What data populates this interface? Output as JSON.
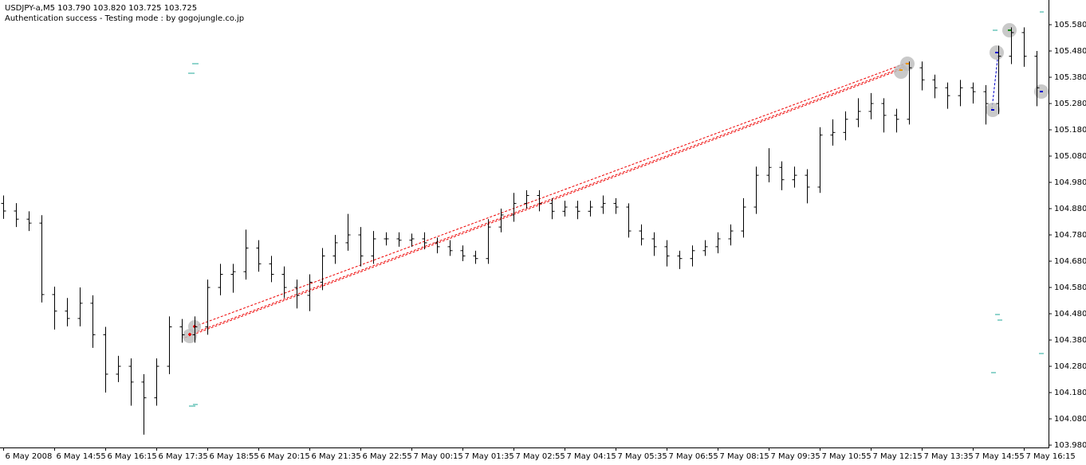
{
  "chart_data": {
    "type": "ohlc",
    "title": "USDJPY-a,M5  103.790 103.820 103.725 103.725",
    "subtitle": "Authentication success - Testing mode : by gogojungle.co.jp",
    "color": "#000000",
    "categories": [
      "6 May 2008",
      null,
      null,
      null,
      "6 May 14:55",
      null,
      null,
      null,
      "6 May 16:15",
      null,
      null,
      null,
      "6 May 17:35",
      null,
      null,
      null,
      "6 May 18:55",
      null,
      null,
      null,
      "6 May 20:15",
      null,
      null,
      null,
      "6 May 21:35",
      null,
      null,
      null,
      "6 May 22:55",
      null,
      null,
      null,
      "7 May 00:15",
      null,
      null,
      null,
      "7 May 01:35",
      null,
      null,
      null,
      "7 May 02:55",
      null,
      null,
      null,
      "7 May 04:15",
      null,
      null,
      null,
      "7 May 05:35",
      null,
      null,
      null,
      "7 May 06:55",
      null,
      null,
      null,
      "7 May 08:15",
      null,
      null,
      null,
      "7 May 09:35",
      null,
      null,
      null,
      "7 May 10:55",
      null,
      null,
      null,
      "7 May 12:15",
      null,
      null,
      null,
      "7 May 13:35",
      null,
      null,
      null,
      "7 May 14:55",
      null,
      null,
      null,
      "7 May 16:15",
      null
    ],
    "open": [
      104.9,
      104.871,
      104.84,
      104.825,
      104.553,
      104.49,
      104.462,
      104.52,
      104.4,
      104.25,
      104.28,
      104.22,
      104.16,
      104.28,
      104.43,
      104.4,
      104.43,
      104.58,
      104.63,
      104.64,
      104.73,
      104.67,
      104.63,
      104.58,
      104.55,
      104.6,
      104.7,
      104.75,
      104.78,
      104.7,
      104.765,
      104.765,
      104.76,
      104.765,
      104.75,
      104.735,
      104.72,
      104.7,
      104.69,
      104.81,
      104.856,
      104.9,
      104.93,
      104.9,
      104.87,
      104.886,
      104.87,
      104.886,
      104.9,
      104.886,
      104.795,
      104.765,
      104.735,
      104.7,
      104.69,
      104.72,
      104.735,
      104.765,
      104.795,
      104.886,
      105.007,
      105.037,
      104.99,
      105.007,
      104.962,
      105.16,
      105.17,
      105.22,
      105.25,
      105.28,
      105.235,
      105.22,
      105.416,
      105.37,
      105.34,
      105.31,
      105.34,
      105.325,
      105.28,
      105.46,
      105.55,
      105.46
    ],
    "high": [
      104.93,
      104.901,
      104.87,
      104.855,
      104.583,
      104.54,
      104.58,
      104.55,
      104.43,
      104.32,
      104.31,
      104.25,
      104.31,
      104.47,
      104.46,
      104.47,
      104.61,
      104.67,
      104.67,
      104.8,
      104.76,
      104.7,
      104.66,
      104.61,
      104.63,
      104.73,
      104.78,
      104.86,
      104.81,
      104.795,
      104.79,
      104.79,
      104.785,
      104.79,
      104.77,
      104.76,
      104.74,
      104.72,
      104.84,
      104.88,
      104.94,
      104.95,
      104.95,
      104.92,
      104.91,
      104.91,
      104.91,
      104.93,
      104.92,
      104.9,
      104.82,
      104.79,
      104.76,
      104.72,
      104.74,
      104.76,
      104.79,
      104.82,
      104.92,
      105.04,
      105.11,
      105.06,
      105.04,
      105.03,
      105.19,
      105.22,
      105.25,
      105.3,
      105.32,
      105.3,
      105.26,
      105.44,
      105.44,
      105.39,
      105.36,
      105.37,
      105.36,
      105.35,
      105.5,
      105.57,
      105.57,
      105.48
    ],
    "low": [
      104.841,
      104.81,
      104.795,
      104.523,
      104.42,
      104.432,
      104.432,
      104.35,
      104.18,
      104.22,
      104.13,
      104.02,
      104.13,
      104.25,
      104.37,
      104.37,
      104.4,
      104.55,
      104.56,
      104.61,
      104.64,
      104.6,
      104.54,
      104.5,
      104.49,
      104.57,
      104.67,
      104.72,
      104.66,
      104.67,
      104.74,
      104.735,
      104.735,
      104.725,
      104.71,
      104.7,
      104.68,
      104.67,
      104.67,
      104.79,
      104.83,
      104.88,
      104.87,
      104.84,
      104.85,
      104.84,
      104.85,
      104.86,
      104.86,
      104.77,
      104.74,
      104.7,
      104.66,
      104.65,
      104.66,
      104.7,
      104.71,
      104.74,
      104.77,
      104.86,
      104.98,
      104.95,
      104.96,
      104.9,
      104.94,
      105.12,
      105.14,
      105.19,
      105.22,
      105.17,
      105.17,
      105.2,
      105.33,
      105.3,
      105.26,
      105.27,
      105.28,
      105.2,
      105.24,
      105.43,
      105.42,
      105.27
    ],
    "close": [
      104.871,
      104.84,
      104.825,
      104.553,
      104.49,
      104.462,
      104.52,
      104.4,
      104.25,
      104.28,
      104.22,
      104.16,
      104.28,
      104.43,
      104.4,
      104.43,
      104.58,
      104.63,
      104.64,
      104.73,
      104.67,
      104.63,
      104.58,
      104.55,
      104.6,
      104.7,
      104.75,
      104.78,
      104.7,
      104.765,
      104.765,
      104.76,
      104.765,
      104.75,
      104.735,
      104.72,
      104.7,
      104.69,
      104.81,
      104.856,
      104.9,
      104.93,
      104.9,
      104.87,
      104.886,
      104.87,
      104.886,
      104.9,
      104.886,
      104.795,
      104.765,
      104.735,
      104.7,
      104.69,
      104.72,
      104.735,
      104.765,
      104.795,
      104.886,
      105.007,
      105.037,
      104.99,
      105.007,
      104.962,
      105.16,
      105.17,
      105.22,
      105.25,
      105.28,
      105.235,
      105.22,
      105.416,
      105.37,
      105.34,
      105.31,
      105.34,
      105.325,
      105.28,
      105.46,
      105.55,
      105.46,
      105.34
    ],
    "ylim": [
      103.971,
      105.674
    ],
    "yticks": [
      {
        "value": 105.58,
        "label": "105.580"
      },
      {
        "value": 105.48,
        "label": "105.480"
      },
      {
        "value": 105.38,
        "label": "105.380"
      },
      {
        "value": 105.28,
        "label": "105.280"
      },
      {
        "value": 105.18,
        "label": "105.180"
      },
      {
        "value": 105.08,
        "label": "105.080"
      },
      {
        "value": 104.98,
        "label": "104.980"
      },
      {
        "value": 104.88,
        "label": "104.880"
      },
      {
        "value": 104.78,
        "label": "104.780"
      },
      {
        "value": 104.68,
        "label": "104.680"
      },
      {
        "value": 104.58,
        "label": "104.580"
      },
      {
        "value": 104.48,
        "label": "104.480"
      },
      {
        "value": 104.38,
        "label": "104.380"
      },
      {
        "value": 104.28,
        "label": "104.280"
      },
      {
        "value": 104.18,
        "label": "104.180"
      },
      {
        "value": 104.08,
        "label": "104.080"
      },
      {
        "value": 103.98,
        "label": "103.980"
      }
    ],
    "grid": false
  }
}
